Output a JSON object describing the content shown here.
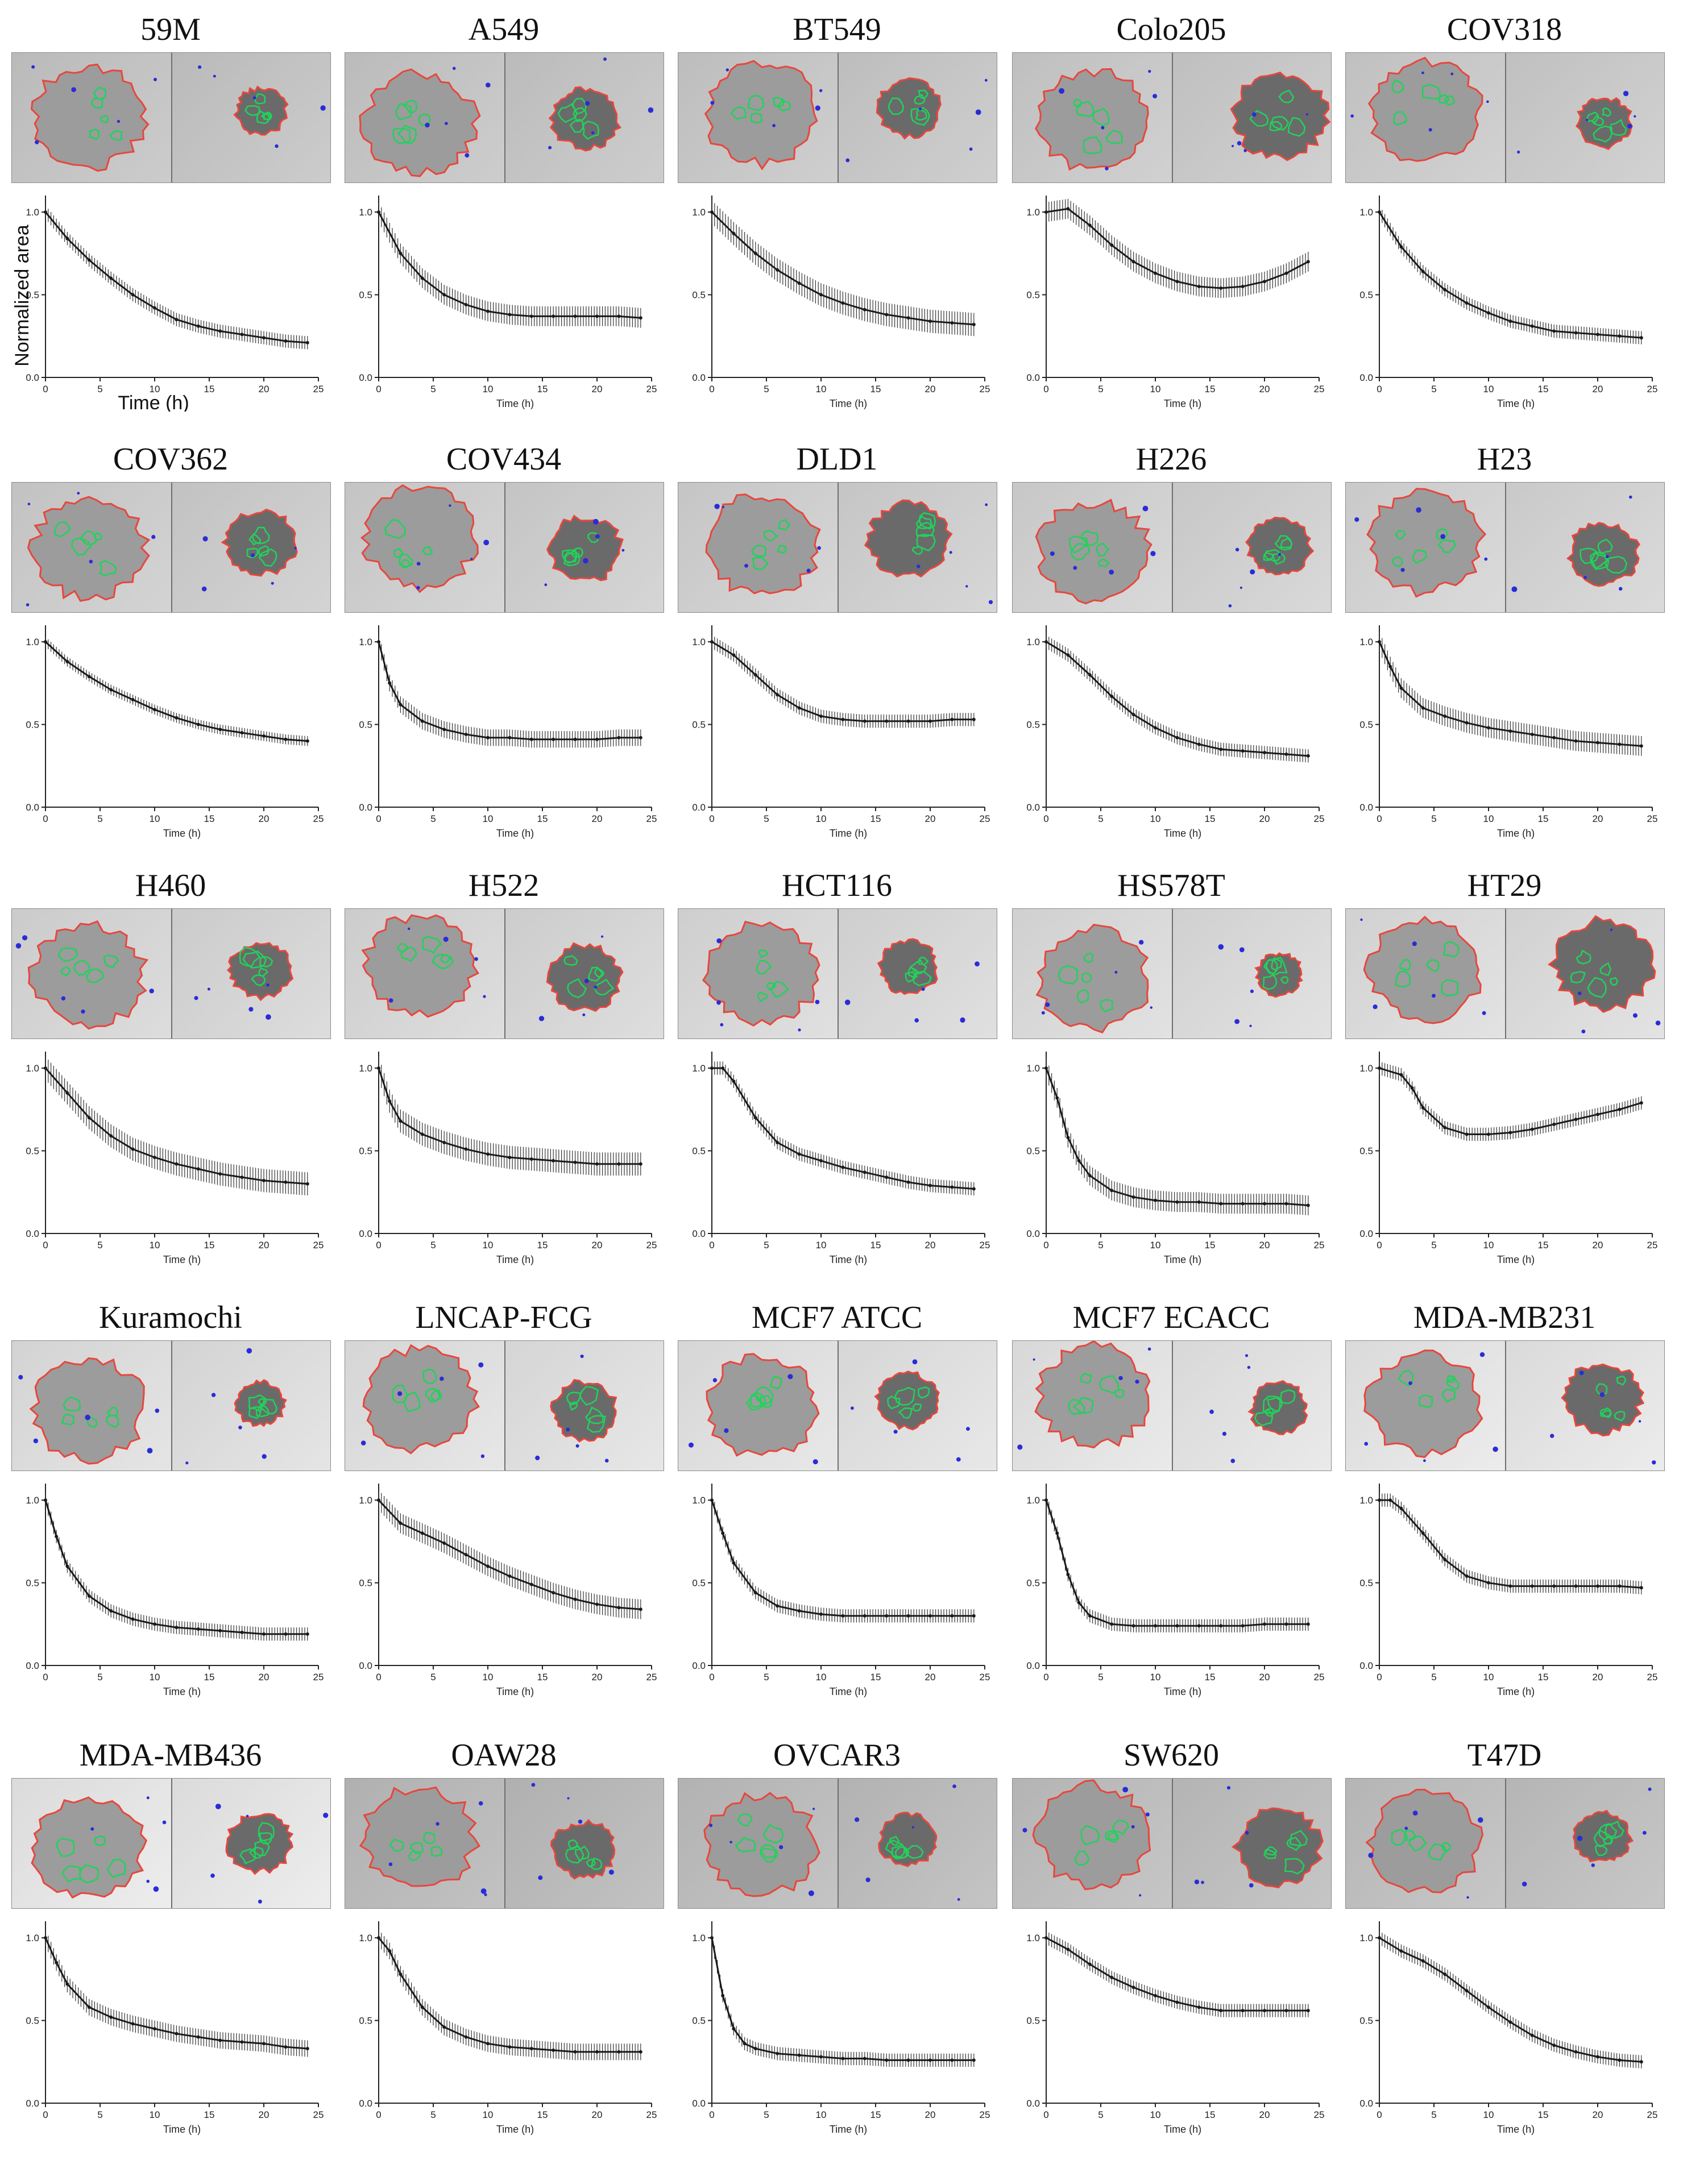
{
  "colors": {
    "outline": "#e8463c",
    "inner": "#1fd35a",
    "debris": "#2a2cd8",
    "curve": "#1a1a1a",
    "axis": "#222222"
  },
  "axes": {
    "xticks": [
      "0",
      "5",
      "10",
      "15",
      "20",
      "25"
    ],
    "yticks": [
      "0.0",
      "0.5",
      "1.0"
    ],
    "xlabel": "Time (h)",
    "ylabel": "Normalized area"
  },
  "chart_data": [
    {
      "type": "line",
      "title": "59M",
      "x": [
        0,
        2,
        4,
        6,
        8,
        10,
        12,
        14,
        16,
        18,
        20,
        22,
        24
      ],
      "values": [
        1.0,
        0.84,
        0.71,
        0.6,
        0.5,
        0.42,
        0.35,
        0.31,
        0.28,
        0.26,
        0.24,
        0.22,
        0.21
      ],
      "error": 0.04,
      "xlim": [
        0,
        25
      ],
      "ylim": [
        0,
        1.1
      ],
      "xlabel": "Time (h)",
      "ylabel": "Normalized area"
    },
    {
      "type": "line",
      "title": "A549",
      "x": [
        0,
        2,
        4,
        6,
        8,
        10,
        12,
        14,
        16,
        18,
        20,
        22,
        24
      ],
      "values": [
        1.0,
        0.75,
        0.6,
        0.5,
        0.44,
        0.4,
        0.38,
        0.37,
        0.37,
        0.37,
        0.37,
        0.37,
        0.36
      ],
      "error": 0.06,
      "xlim": [
        0,
        25
      ],
      "ylim": [
        0,
        1.1
      ],
      "xlabel": "Time (h)"
    },
    {
      "type": "line",
      "title": "BT549",
      "x": [
        0,
        2,
        4,
        6,
        8,
        10,
        12,
        14,
        16,
        18,
        20,
        22,
        24
      ],
      "values": [
        1.0,
        0.87,
        0.75,
        0.65,
        0.57,
        0.5,
        0.45,
        0.41,
        0.38,
        0.36,
        0.34,
        0.33,
        0.32
      ],
      "error": 0.07,
      "xlim": [
        0,
        25
      ],
      "ylim": [
        0,
        1.1
      ],
      "xlabel": "Time (h)"
    },
    {
      "type": "line",
      "title": "Colo205",
      "x": [
        0,
        2,
        4,
        6,
        8,
        10,
        12,
        14,
        16,
        18,
        20,
        22,
        24
      ],
      "values": [
        1.0,
        1.02,
        0.92,
        0.8,
        0.7,
        0.63,
        0.58,
        0.55,
        0.54,
        0.55,
        0.58,
        0.63,
        0.7
      ],
      "error": 0.06,
      "xlim": [
        0,
        25
      ],
      "ylim": [
        0,
        1.1
      ],
      "xlabel": "Time (h)"
    },
    {
      "type": "line",
      "title": "COV318",
      "x": [
        0,
        2,
        4,
        6,
        8,
        10,
        12,
        14,
        16,
        18,
        20,
        22,
        24
      ],
      "values": [
        1.0,
        0.79,
        0.64,
        0.53,
        0.45,
        0.39,
        0.34,
        0.31,
        0.28,
        0.27,
        0.26,
        0.25,
        0.24
      ],
      "error": 0.04,
      "xlim": [
        0,
        25
      ],
      "ylim": [
        0,
        1.1
      ],
      "xlabel": "Time (h)"
    },
    {
      "type": "line",
      "title": "COV362",
      "x": [
        0,
        2,
        4,
        6,
        8,
        10,
        12,
        14,
        16,
        18,
        20,
        22,
        24
      ],
      "values": [
        1.0,
        0.88,
        0.79,
        0.71,
        0.65,
        0.59,
        0.54,
        0.5,
        0.47,
        0.45,
        0.43,
        0.41,
        0.4
      ],
      "error": 0.03,
      "xlim": [
        0,
        25
      ],
      "ylim": [
        0,
        1.1
      ],
      "xlabel": "Time (h)"
    },
    {
      "type": "line",
      "title": "COV434",
      "x": [
        0,
        1,
        2,
        4,
        6,
        8,
        10,
        12,
        14,
        16,
        18,
        20,
        22,
        24
      ],
      "values": [
        1.0,
        0.75,
        0.62,
        0.52,
        0.47,
        0.44,
        0.42,
        0.42,
        0.41,
        0.41,
        0.41,
        0.41,
        0.42,
        0.42
      ],
      "error": 0.05,
      "xlim": [
        0,
        25
      ],
      "ylim": [
        0,
        1.1
      ],
      "xlabel": "Time (h)"
    },
    {
      "type": "line",
      "title": "DLD1",
      "x": [
        0,
        2,
        4,
        6,
        8,
        10,
        12,
        14,
        16,
        18,
        20,
        22,
        24
      ],
      "values": [
        1.0,
        0.92,
        0.8,
        0.68,
        0.6,
        0.55,
        0.53,
        0.52,
        0.52,
        0.52,
        0.52,
        0.53,
        0.53
      ],
      "error": 0.04,
      "xlim": [
        0,
        25
      ],
      "ylim": [
        0,
        1.1
      ],
      "xlabel": "Time (h)"
    },
    {
      "type": "line",
      "title": "H226",
      "x": [
        0,
        2,
        4,
        6,
        8,
        10,
        12,
        14,
        16,
        18,
        20,
        22,
        24
      ],
      "values": [
        1.0,
        0.92,
        0.8,
        0.67,
        0.56,
        0.48,
        0.42,
        0.38,
        0.35,
        0.34,
        0.33,
        0.32,
        0.31
      ],
      "error": 0.04,
      "xlim": [
        0,
        25
      ],
      "ylim": [
        0,
        1.1
      ],
      "xlabel": "Time (h)"
    },
    {
      "type": "line",
      "title": "H23",
      "x": [
        0,
        1,
        2,
        4,
        6,
        8,
        10,
        12,
        14,
        16,
        18,
        20,
        22,
        24
      ],
      "values": [
        1.0,
        0.85,
        0.72,
        0.6,
        0.55,
        0.51,
        0.48,
        0.46,
        0.44,
        0.42,
        0.4,
        0.39,
        0.38,
        0.37
      ],
      "error": 0.06,
      "xlim": [
        0,
        25
      ],
      "ylim": [
        0,
        1.1
      ],
      "xlabel": "Time (h)"
    },
    {
      "type": "line",
      "title": "H460",
      "x": [
        0,
        2,
        4,
        6,
        8,
        10,
        12,
        14,
        16,
        18,
        20,
        22,
        24
      ],
      "values": [
        1.0,
        0.85,
        0.7,
        0.59,
        0.51,
        0.46,
        0.42,
        0.39,
        0.36,
        0.34,
        0.32,
        0.31,
        0.3
      ],
      "error": 0.07,
      "xlim": [
        0,
        25
      ],
      "ylim": [
        0,
        1.1
      ],
      "xlabel": "Time (h)"
    },
    {
      "type": "line",
      "title": "H522",
      "x": [
        0,
        1,
        2,
        4,
        6,
        8,
        10,
        12,
        14,
        16,
        18,
        20,
        22,
        24
      ],
      "values": [
        1.0,
        0.8,
        0.68,
        0.6,
        0.55,
        0.51,
        0.48,
        0.46,
        0.45,
        0.44,
        0.43,
        0.42,
        0.42,
        0.42
      ],
      "error": 0.07,
      "xlim": [
        0,
        25
      ],
      "ylim": [
        0,
        1.1
      ],
      "xlabel": "Time (h)"
    },
    {
      "type": "line",
      "title": "HCT116",
      "x": [
        0,
        1,
        2,
        4,
        6,
        8,
        10,
        12,
        14,
        16,
        18,
        20,
        22,
        24
      ],
      "values": [
        1.0,
        1.0,
        0.92,
        0.7,
        0.55,
        0.48,
        0.44,
        0.4,
        0.37,
        0.34,
        0.31,
        0.29,
        0.28,
        0.27
      ],
      "error": 0.04,
      "xlim": [
        0,
        25
      ],
      "ylim": [
        0,
        1.1
      ],
      "xlabel": "Time (h)"
    },
    {
      "type": "line",
      "title": "HS578T",
      "x": [
        0,
        1,
        2,
        3,
        4,
        6,
        8,
        10,
        12,
        14,
        16,
        18,
        20,
        22,
        24
      ],
      "values": [
        1.0,
        0.82,
        0.58,
        0.44,
        0.35,
        0.26,
        0.22,
        0.2,
        0.19,
        0.19,
        0.18,
        0.18,
        0.18,
        0.18,
        0.17
      ],
      "error": 0.06,
      "xlim": [
        0,
        25
      ],
      "ylim": [
        0,
        1.1
      ],
      "xlabel": "Time (h)"
    },
    {
      "type": "line",
      "title": "HT29",
      "x": [
        0,
        2,
        3,
        4,
        6,
        8,
        10,
        12,
        14,
        16,
        18,
        20,
        22,
        24
      ],
      "values": [
        1.0,
        0.96,
        0.88,
        0.76,
        0.64,
        0.6,
        0.6,
        0.61,
        0.63,
        0.66,
        0.69,
        0.72,
        0.75,
        0.79
      ],
      "error": 0.04,
      "xlim": [
        0,
        25
      ],
      "ylim": [
        0,
        1.1
      ],
      "xlabel": "Time (h)"
    },
    {
      "type": "line",
      "title": "Kuramochi",
      "x": [
        0,
        1,
        2,
        4,
        6,
        8,
        10,
        12,
        14,
        16,
        18,
        20,
        22,
        24
      ],
      "values": [
        1.0,
        0.78,
        0.6,
        0.42,
        0.33,
        0.28,
        0.25,
        0.23,
        0.22,
        0.21,
        0.2,
        0.19,
        0.19,
        0.19
      ],
      "error": 0.04,
      "xlim": [
        0,
        25
      ],
      "ylim": [
        0,
        1.1
      ],
      "xlabel": "Time (h)"
    },
    {
      "type": "line",
      "title": "LNCAP-FCG",
      "x": [
        0,
        2,
        4,
        6,
        8,
        10,
        12,
        14,
        16,
        18,
        20,
        22,
        24
      ],
      "values": [
        1.0,
        0.86,
        0.8,
        0.74,
        0.67,
        0.6,
        0.54,
        0.49,
        0.44,
        0.4,
        0.37,
        0.35,
        0.34
      ],
      "error": 0.06,
      "xlim": [
        0,
        25
      ],
      "ylim": [
        0,
        1.1
      ],
      "xlabel": "Time (h)"
    },
    {
      "type": "line",
      "title": "MCF7 ATCC",
      "x": [
        0,
        1,
        2,
        4,
        6,
        8,
        10,
        12,
        14,
        16,
        18,
        20,
        22,
        24
      ],
      "values": [
        1.0,
        0.8,
        0.62,
        0.44,
        0.36,
        0.33,
        0.31,
        0.3,
        0.3,
        0.3,
        0.3,
        0.3,
        0.3,
        0.3
      ],
      "error": 0.04,
      "xlim": [
        0,
        25
      ],
      "ylim": [
        0,
        1.1
      ],
      "xlabel": "Time (h)"
    },
    {
      "type": "line",
      "title": "MCF7 ECACC",
      "x": [
        0,
        1,
        2,
        3,
        4,
        6,
        8,
        10,
        12,
        14,
        16,
        18,
        20,
        22,
        24
      ],
      "values": [
        1.0,
        0.8,
        0.55,
        0.38,
        0.3,
        0.25,
        0.24,
        0.24,
        0.24,
        0.24,
        0.24,
        0.24,
        0.25,
        0.25,
        0.25
      ],
      "error": 0.04,
      "xlim": [
        0,
        25
      ],
      "ylim": [
        0,
        1.1
      ],
      "xlabel": "Time (h)"
    },
    {
      "type": "line",
      "title": "MDA-MB231",
      "x": [
        0,
        1,
        2,
        4,
        6,
        8,
        10,
        12,
        14,
        16,
        18,
        20,
        22,
        24
      ],
      "values": [
        1.0,
        1.0,
        0.95,
        0.8,
        0.64,
        0.54,
        0.5,
        0.48,
        0.48,
        0.48,
        0.48,
        0.48,
        0.48,
        0.47
      ],
      "error": 0.04,
      "xlim": [
        0,
        25
      ],
      "ylim": [
        0,
        1.1
      ],
      "xlabel": "Time (h)"
    },
    {
      "type": "line",
      "title": "MDA-MB436",
      "x": [
        0,
        1,
        2,
        4,
        6,
        8,
        10,
        12,
        14,
        16,
        18,
        20,
        22,
        24
      ],
      "values": [
        1.0,
        0.85,
        0.72,
        0.58,
        0.52,
        0.48,
        0.45,
        0.42,
        0.4,
        0.38,
        0.37,
        0.36,
        0.34,
        0.33
      ],
      "error": 0.05,
      "xlim": [
        0,
        25
      ],
      "ylim": [
        0,
        1.1
      ],
      "xlabel": "Time (h)"
    },
    {
      "type": "line",
      "title": "OAW28",
      "x": [
        0,
        1,
        2,
        4,
        6,
        8,
        10,
        12,
        14,
        16,
        18,
        20,
        22,
        24
      ],
      "values": [
        1.0,
        0.92,
        0.78,
        0.58,
        0.46,
        0.4,
        0.36,
        0.34,
        0.33,
        0.32,
        0.31,
        0.31,
        0.31,
        0.31
      ],
      "error": 0.05,
      "xlim": [
        0,
        25
      ],
      "ylim": [
        0,
        1.1
      ],
      "xlabel": "Time (h)"
    },
    {
      "type": "line",
      "title": "OVCAR3",
      "x": [
        0,
        1,
        2,
        3,
        4,
        6,
        8,
        10,
        12,
        14,
        16,
        18,
        20,
        22,
        24
      ],
      "values": [
        1.0,
        0.65,
        0.45,
        0.36,
        0.33,
        0.3,
        0.29,
        0.28,
        0.27,
        0.27,
        0.26,
        0.26,
        0.26,
        0.26,
        0.26
      ],
      "error": 0.04,
      "xlim": [
        0,
        25
      ],
      "ylim": [
        0,
        1.1
      ],
      "xlabel": "Time (h)"
    },
    {
      "type": "line",
      "title": "SW620",
      "x": [
        0,
        2,
        4,
        6,
        8,
        10,
        12,
        14,
        16,
        18,
        20,
        22,
        24
      ],
      "values": [
        1.0,
        0.93,
        0.84,
        0.76,
        0.7,
        0.65,
        0.61,
        0.58,
        0.56,
        0.56,
        0.56,
        0.56,
        0.56
      ],
      "error": 0.04,
      "xlim": [
        0,
        25
      ],
      "ylim": [
        0,
        1.1
      ],
      "xlabel": "Time (h)"
    },
    {
      "type": "line",
      "title": "T47D",
      "x": [
        0,
        2,
        4,
        6,
        8,
        10,
        12,
        14,
        16,
        18,
        20,
        22,
        24
      ],
      "values": [
        1.0,
        0.92,
        0.86,
        0.78,
        0.68,
        0.58,
        0.49,
        0.41,
        0.35,
        0.31,
        0.28,
        0.26,
        0.25
      ],
      "error": 0.04,
      "xlim": [
        0,
        25
      ],
      "ylim": [
        0,
        1.1
      ],
      "xlabel": "Time (h)"
    }
  ]
}
